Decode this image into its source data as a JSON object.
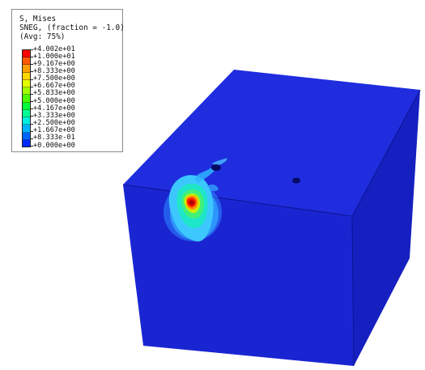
{
  "legend": {
    "title_line1": "S, Mises",
    "title_line2": "SNEG, (fraction = -1.0)",
    "title_line3": "(Avg: 75%)",
    "levels": [
      {
        "label": "+4.002e+01",
        "color": "#ff0000"
      },
      {
        "label": "+1.000e+01",
        "color": "#ff5a00"
      },
      {
        "label": "+9.167e+00",
        "color": "#ffa000"
      },
      {
        "label": "+8.333e+00",
        "color": "#ffd700"
      },
      {
        "label": "+7.500e+00",
        "color": "#e6ff00"
      },
      {
        "label": "+6.667e+00",
        "color": "#a0ff00"
      },
      {
        "label": "+5.833e+00",
        "color": "#4cff00"
      },
      {
        "label": "+5.000e+00",
        "color": "#00ff3c"
      },
      {
        "label": "+4.167e+00",
        "color": "#00ff96"
      },
      {
        "label": "+3.333e+00",
        "color": "#00f0e0"
      },
      {
        "label": "+2.500e+00",
        "color": "#00b4ff"
      },
      {
        "label": "+1.667e+00",
        "color": "#0064ff"
      },
      {
        "label": "+8.333e-01",
        "color": "#0028ff"
      },
      {
        "label": "+0.000e+00",
        "color": "#0000ff"
      }
    ]
  },
  "colors": {
    "cube_top": "#1f2dde",
    "cube_front": "#1a25d2",
    "cube_right": "#1620c0",
    "cube_edge": "#0d1590"
  }
}
